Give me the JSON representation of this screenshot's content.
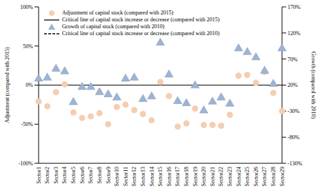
{
  "chart_data": {
    "type": "scatter",
    "categories": [
      "Sector1",
      "Sector2",
      "Sector3",
      "Sector4",
      "Sector5",
      "Sector6",
      "Sector7",
      "Sector8",
      "Sector9",
      "Sector10",
      "Sector11",
      "Sector12",
      "Sector13",
      "Sector14",
      "Sector15",
      "Sector16",
      "Sector17",
      "Sector18",
      "Sector19",
      "Sector20",
      "Sector21",
      "Sector22",
      "Sector23",
      "Sector24",
      "Sector25",
      "Sector26",
      "Sector27",
      "Sector28",
      "Sector29"
    ],
    "series": [
      {
        "name": "Adjustment of capital stock (compared with 2015)",
        "color": "#f5cdb0",
        "marker": "circle",
        "values": [
          -21,
          -27,
          -9,
          1,
          -35,
          -42,
          -40,
          -36,
          -50,
          -28,
          -25,
          -32,
          -37,
          -45,
          4,
          -14,
          -53,
          -49,
          -30,
          -51,
          -51,
          -52,
          -38,
          12,
          13,
          3,
          17,
          -10,
          -33
        ]
      },
      {
        "name": "Growth of capital stock (compared with 2010)",
        "color": "#9db4d4",
        "marker": "triangle",
        "axis": "y2",
        "values": [
          32,
          34,
          51,
          46,
          -13,
          16,
          16,
          6,
          2,
          -4,
          32,
          34,
          -7,
          -2,
          101,
          40,
          -11,
          -15,
          19,
          -29,
          -12,
          -4,
          -16,
          90,
          83,
          73,
          47,
          22,
          90
        ]
      }
    ],
    "reference_lines": [
      {
        "name": "Critical line of capital stock increase or decrease (compared with 2015)",
        "value": 0,
        "color": "#000000",
        "line_style": "solid"
      },
      {
        "name": "Critical line of capital stock increase or decrease (compared with 2010)",
        "value": 20,
        "axis": "y2",
        "color": "#000000",
        "line_style": "dashed"
      }
    ],
    "y_label": "Adjustment (compared with 2015)",
    "y2_label": "Growth (compared with 2010)",
    "ylim": [
      -100,
      100
    ],
    "yticks": [
      {
        "value": -100,
        "label": "-100%"
      },
      {
        "value": -50,
        "label": "-50%"
      },
      {
        "value": 0,
        "label": "0%"
      },
      {
        "value": 50,
        "label": "50%"
      },
      {
        "value": 100,
        "label": "100%"
      }
    ],
    "y2lim": [
      -130,
      170
    ],
    "y2ticks": [
      {
        "value": -130,
        "label": "-130%"
      },
      {
        "value": -80,
        "label": "-80%"
      },
      {
        "value": -30,
        "label": "-30%"
      },
      {
        "value": 20,
        "label": "20%"
      },
      {
        "value": 70,
        "label": "70%"
      },
      {
        "value": 120,
        "label": "120%"
      },
      {
        "value": 170,
        "label": "170%"
      }
    ],
    "legend": "upper left"
  }
}
